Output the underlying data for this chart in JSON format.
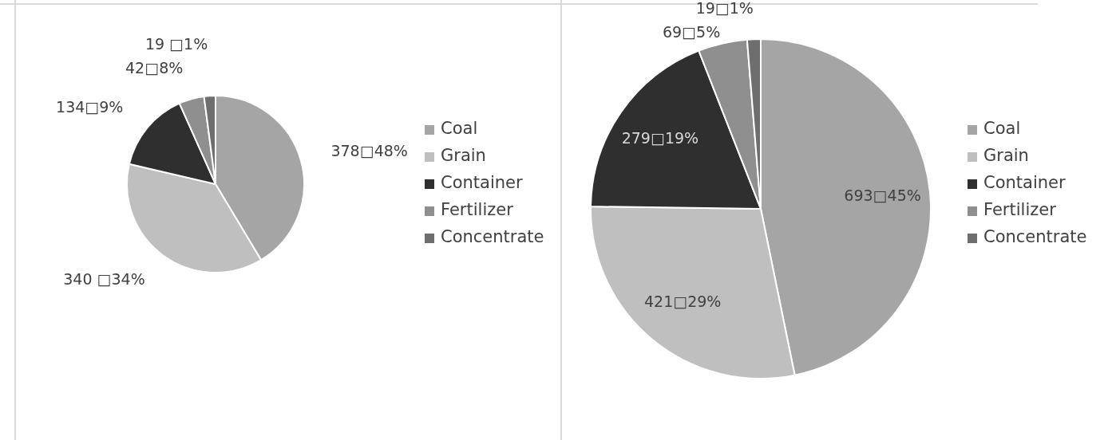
{
  "chart_data": [
    {
      "type": "pie",
      "categories": [
        "Coal",
        "Grain",
        "Container",
        "Fertilizer",
        "Concentrate"
      ],
      "values": [
        378,
        340,
        134,
        42,
        19
      ],
      "colors": [
        "#a5a5a5",
        "#bfbfbf",
        "#2f2f2f",
        "#8f8f8f",
        "#6e6e6e"
      ],
      "value_labels": [
        "378□48%",
        "340 □34%",
        "134□9%",
        "42□8%",
        "19 □1%"
      ],
      "legend": "right"
    },
    {
      "type": "pie",
      "categories": [
        "Coal",
        "Grain",
        "Container",
        "Fertilizer",
        "Concentrate"
      ],
      "values": [
        693,
        421,
        279,
        69,
        19
      ],
      "colors": [
        "#a5a5a5",
        "#bfbfbf",
        "#2f2f2f",
        "#8f8f8f",
        "#6e6e6e"
      ],
      "value_labels": [
        "693□45%",
        "421□29%",
        "279□19%",
        "69□5%",
        "19□1%"
      ],
      "legend": "right"
    }
  ]
}
